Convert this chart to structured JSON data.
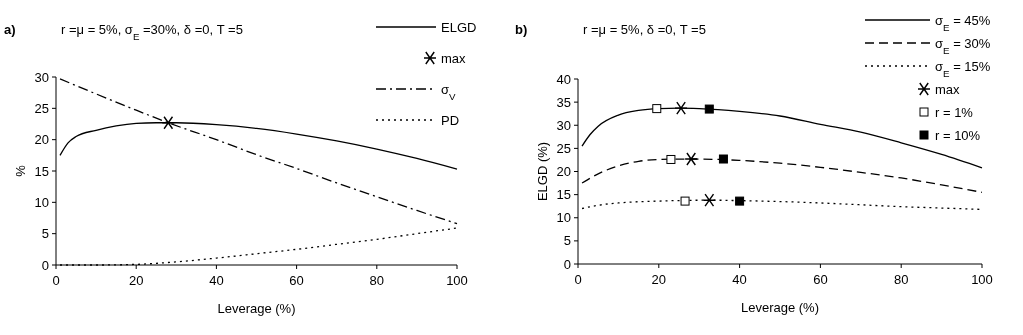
{
  "chart_data": [
    {
      "type": "line",
      "title": "a)",
      "subtitle": "r =μ = 5%, σ$_{E}$ =30%, δ =0, T =5",
      "xlabel": "Leverage (%)",
      "ylabel": "%",
      "xlim": [
        0,
        100
      ],
      "xticks": [
        0,
        20,
        40,
        60,
        80,
        100
      ],
      "ylim": [
        0,
        30
      ],
      "yticks": [
        0,
        5,
        10,
        15,
        20,
        25,
        30
      ],
      "legend": "top right",
      "grid": false,
      "series": [
        {
          "name": "ELGD",
          "color": "#000000",
          "line_style": "solid",
          "x": [
            1,
            3,
            5,
            10,
            15,
            20,
            25,
            30,
            40,
            50,
            60,
            70,
            80,
            90,
            100
          ],
          "values": [
            17.5,
            19.5,
            20.5,
            21.5,
            22.2,
            22.6,
            22.7,
            22.7,
            22.4,
            21.8,
            20.9,
            19.8,
            18.5,
            17,
            15.3
          ]
        },
        {
          "name": "max",
          "type": "scatter",
          "marker": "cross",
          "color": "#000000",
          "x": [
            28
          ],
          "values": [
            22.7
          ]
        },
        {
          "name": "σ$_{V}$",
          "color": "#000000",
          "line_style": "dashdot",
          "x": [
            1,
            10,
            20,
            28,
            40,
            50,
            60,
            70,
            80,
            90,
            100
          ],
          "values": [
            29.7,
            27.3,
            24.7,
            22.7,
            20,
            17.6,
            15.4,
            13.1,
            10.9,
            8.7,
            6.6
          ]
        },
        {
          "name": "PD",
          "color": "#000000",
          "line_style": "dotted",
          "x": [
            1,
            10,
            20,
            30,
            40,
            50,
            60,
            70,
            80,
            90,
            100
          ],
          "values": [
            0,
            0,
            0.1,
            0.5,
            1.1,
            1.8,
            2.5,
            3.3,
            4.1,
            5,
            5.9
          ]
        }
      ]
    },
    {
      "type": "line",
      "title": "b)",
      "subtitle": "r =μ = 5%, δ =0, T =5",
      "xlabel": "Leverage (%)",
      "ylabel": "ELGD (%)",
      "xlim": [
        0,
        100
      ],
      "xticks": [
        0,
        20,
        40,
        60,
        80,
        100
      ],
      "ylim": [
        0,
        40
      ],
      "yticks": [
        0,
        5,
        10,
        15,
        20,
        25,
        30,
        35,
        40
      ],
      "legend": "top right",
      "grid": false,
      "series": [
        {
          "name": "σ$_{E}$ = 45%",
          "color": "#000000",
          "line_style": "solid",
          "x": [
            1,
            3,
            5,
            10,
            15,
            20,
            25,
            30,
            40,
            50,
            60,
            70,
            80,
            90,
            100
          ],
          "values": [
            25.5,
            28,
            29.8,
            32.2,
            33.2,
            33.6,
            33.7,
            33.6,
            33,
            32,
            30.2,
            28.5,
            26.2,
            23.7,
            20.8
          ]
        },
        {
          "name": "σ$_{E}$ = 30%",
          "color": "#000000",
          "line_style": "dashed",
          "x": [
            1,
            5,
            10,
            15,
            20,
            28,
            35,
            40,
            50,
            60,
            70,
            80,
            90,
            100
          ],
          "values": [
            17.5,
            19.5,
            21.2,
            22.2,
            22.6,
            22.7,
            22.6,
            22.4,
            21.8,
            20.9,
            19.8,
            18.6,
            17.1,
            15.5
          ]
        },
        {
          "name": "σ$_{E}$ = 15%",
          "color": "#000000",
          "line_style": "dotted",
          "x": [
            1,
            5,
            10,
            20,
            33,
            40,
            50,
            60,
            70,
            80,
            90,
            100
          ],
          "values": [
            12,
            12.7,
            13.2,
            13.6,
            13.8,
            13.7,
            13.5,
            13.2,
            12.8,
            12.4,
            12.1,
            11.8
          ]
        },
        {
          "name": "max",
          "type": "scatter",
          "marker": "cross",
          "color": "#000000",
          "x": [
            25.5,
            28,
            32.5
          ],
          "values": [
            33.7,
            22.7,
            13.8
          ]
        },
        {
          "name": "r = 1%",
          "type": "scatter",
          "marker": "square",
          "color": "#ffffff",
          "x": [
            19.5,
            23,
            26.5
          ],
          "values": [
            33.6,
            22.6,
            13.6
          ]
        },
        {
          "name": "r = 10%",
          "type": "scatter",
          "marker": "square",
          "color": "#000000",
          "x": [
            32.5,
            36,
            40
          ],
          "values": [
            33.5,
            22.7,
            13.6
          ]
        }
      ]
    }
  ]
}
